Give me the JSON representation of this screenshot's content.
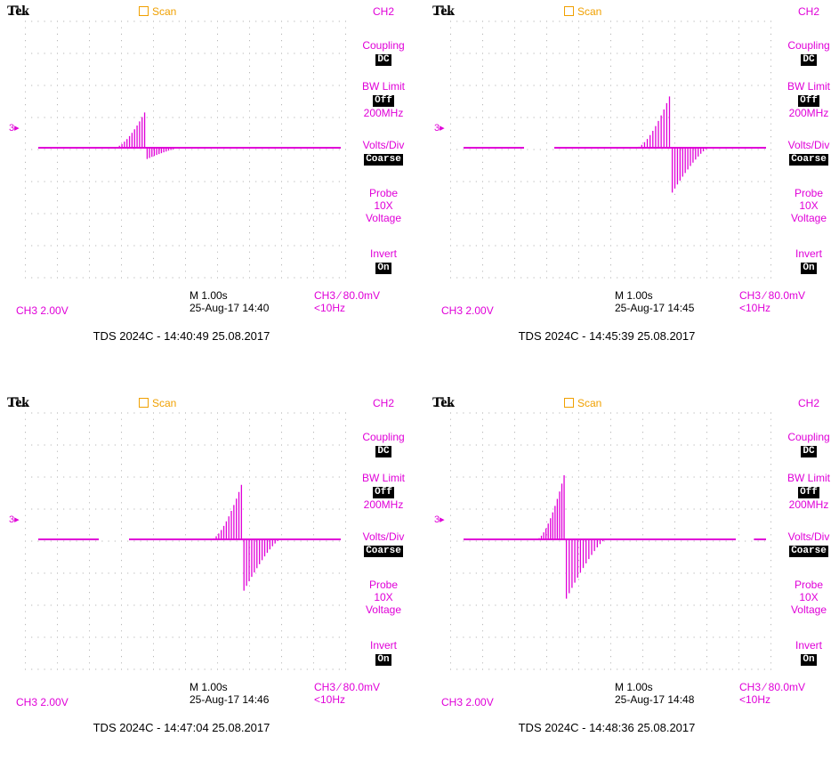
{
  "colors": {
    "trace": "#e000d8",
    "grid_dots": "#b8b8b8",
    "scan": "#f0a000",
    "text": "#000000"
  },
  "panels": [
    {
      "brand": "Tek",
      "scan_label": "Scan",
      "channel_title": "CH2",
      "coupling_label": "Coupling",
      "coupling_value": "DC",
      "bw_limit_label": "BW Limit",
      "bw_limit_value": "Off",
      "bw_limit_freq": "200MHz",
      "volts_div_label": "Volts/Div",
      "volts_div_value": "Coarse",
      "probe_label": "Probe",
      "probe_value": "10X",
      "probe_type": "Voltage",
      "invert_label": "Invert",
      "invert_value": "On",
      "ch_marker": "3",
      "ch_scale": "CH3  2.00V",
      "timebase": "M 1.00s",
      "datetime": "25-Aug-17 14:40",
      "trigger": "CH3 ⁄ 80.0mV",
      "trigger_freq": "<10Hz",
      "caption": "TDS 2024C - 14:40:49   25.08.2017",
      "waveform": {
        "gaps": [],
        "burst_start": 0.26,
        "pos_peak": 1.1,
        "neg_peak": 0.35,
        "pos_width": 0.1,
        "neg_width": 0.11
      }
    },
    {
      "brand": "Tek",
      "scan_label": "Scan",
      "channel_title": "CH2",
      "coupling_label": "Coupling",
      "coupling_value": "DC",
      "bw_limit_label": "BW Limit",
      "bw_limit_value": "Off",
      "bw_limit_freq": "200MHz",
      "volts_div_label": "Volts/Div",
      "volts_div_value": "Coarse",
      "probe_label": "Probe",
      "probe_value": "10X",
      "probe_type": "Voltage",
      "invert_label": "Invert",
      "invert_value": "On",
      "ch_marker": "3",
      "ch_scale": "CH3  2.00V",
      "timebase": "M 1.00s",
      "datetime": "25-Aug-17 14:45",
      "trigger": "CH3 ⁄ 80.0mV",
      "trigger_freq": "<10Hz",
      "caption": "TDS 2024C - 14:45:39   25.08.2017",
      "waveform": {
        "gaps": [
          [
            0.2,
            0.3
          ]
        ],
        "burst_start": 0.58,
        "pos_peak": 1.6,
        "neg_peak": 1.4,
        "pos_width": 0.11,
        "neg_width": 0.12
      }
    },
    {
      "brand": "Tek",
      "scan_label": "Scan",
      "channel_title": "CH2",
      "coupling_label": "Coupling",
      "coupling_value": "DC",
      "bw_limit_label": "BW Limit",
      "bw_limit_value": "Off",
      "bw_limit_freq": "200MHz",
      "volts_div_label": "Volts/Div",
      "volts_div_value": "Coarse",
      "probe_label": "Probe",
      "probe_value": "10X",
      "probe_type": "Voltage",
      "invert_label": "Invert",
      "invert_value": "On",
      "ch_marker": "3",
      "ch_scale": "CH3  2.00V",
      "timebase": "M 1.00s",
      "datetime": "25-Aug-17 14:46",
      "trigger": "CH3 ⁄ 80.0mV",
      "trigger_freq": "<10Hz",
      "caption": "TDS 2024C - 14:47:04   25.08.2017",
      "waveform": {
        "gaps": [
          [
            0.2,
            0.3
          ]
        ],
        "burst_start": 0.58,
        "pos_peak": 1.7,
        "neg_peak": 1.6,
        "pos_width": 0.1,
        "neg_width": 0.12
      }
    },
    {
      "brand": "Tek",
      "scan_label": "Scan",
      "channel_title": "CH2",
      "coupling_label": "Coupling",
      "coupling_value": "DC",
      "bw_limit_label": "BW Limit",
      "bw_limit_value": "Off",
      "bw_limit_freq": "200MHz",
      "volts_div_label": "Volts/Div",
      "volts_div_value": "Coarse",
      "probe_label": "Probe",
      "probe_value": "10X",
      "probe_type": "Voltage",
      "invert_label": "Invert",
      "invert_value": "On",
      "ch_marker": "3",
      "ch_scale": "CH3  2.00V",
      "timebase": "M 1.00s",
      "datetime": "25-Aug-17 14:48",
      "trigger": "CH3 ⁄ 80.0mV",
      "trigger_freq": "<10Hz",
      "caption": "TDS 2024C - 14:48:36   25.08.2017",
      "waveform": {
        "gaps": [
          [
            0.9,
            0.96
          ]
        ],
        "burst_start": 0.25,
        "pos_peak": 2.0,
        "neg_peak": 1.85,
        "pos_width": 0.09,
        "neg_width": 0.13
      }
    }
  ]
}
